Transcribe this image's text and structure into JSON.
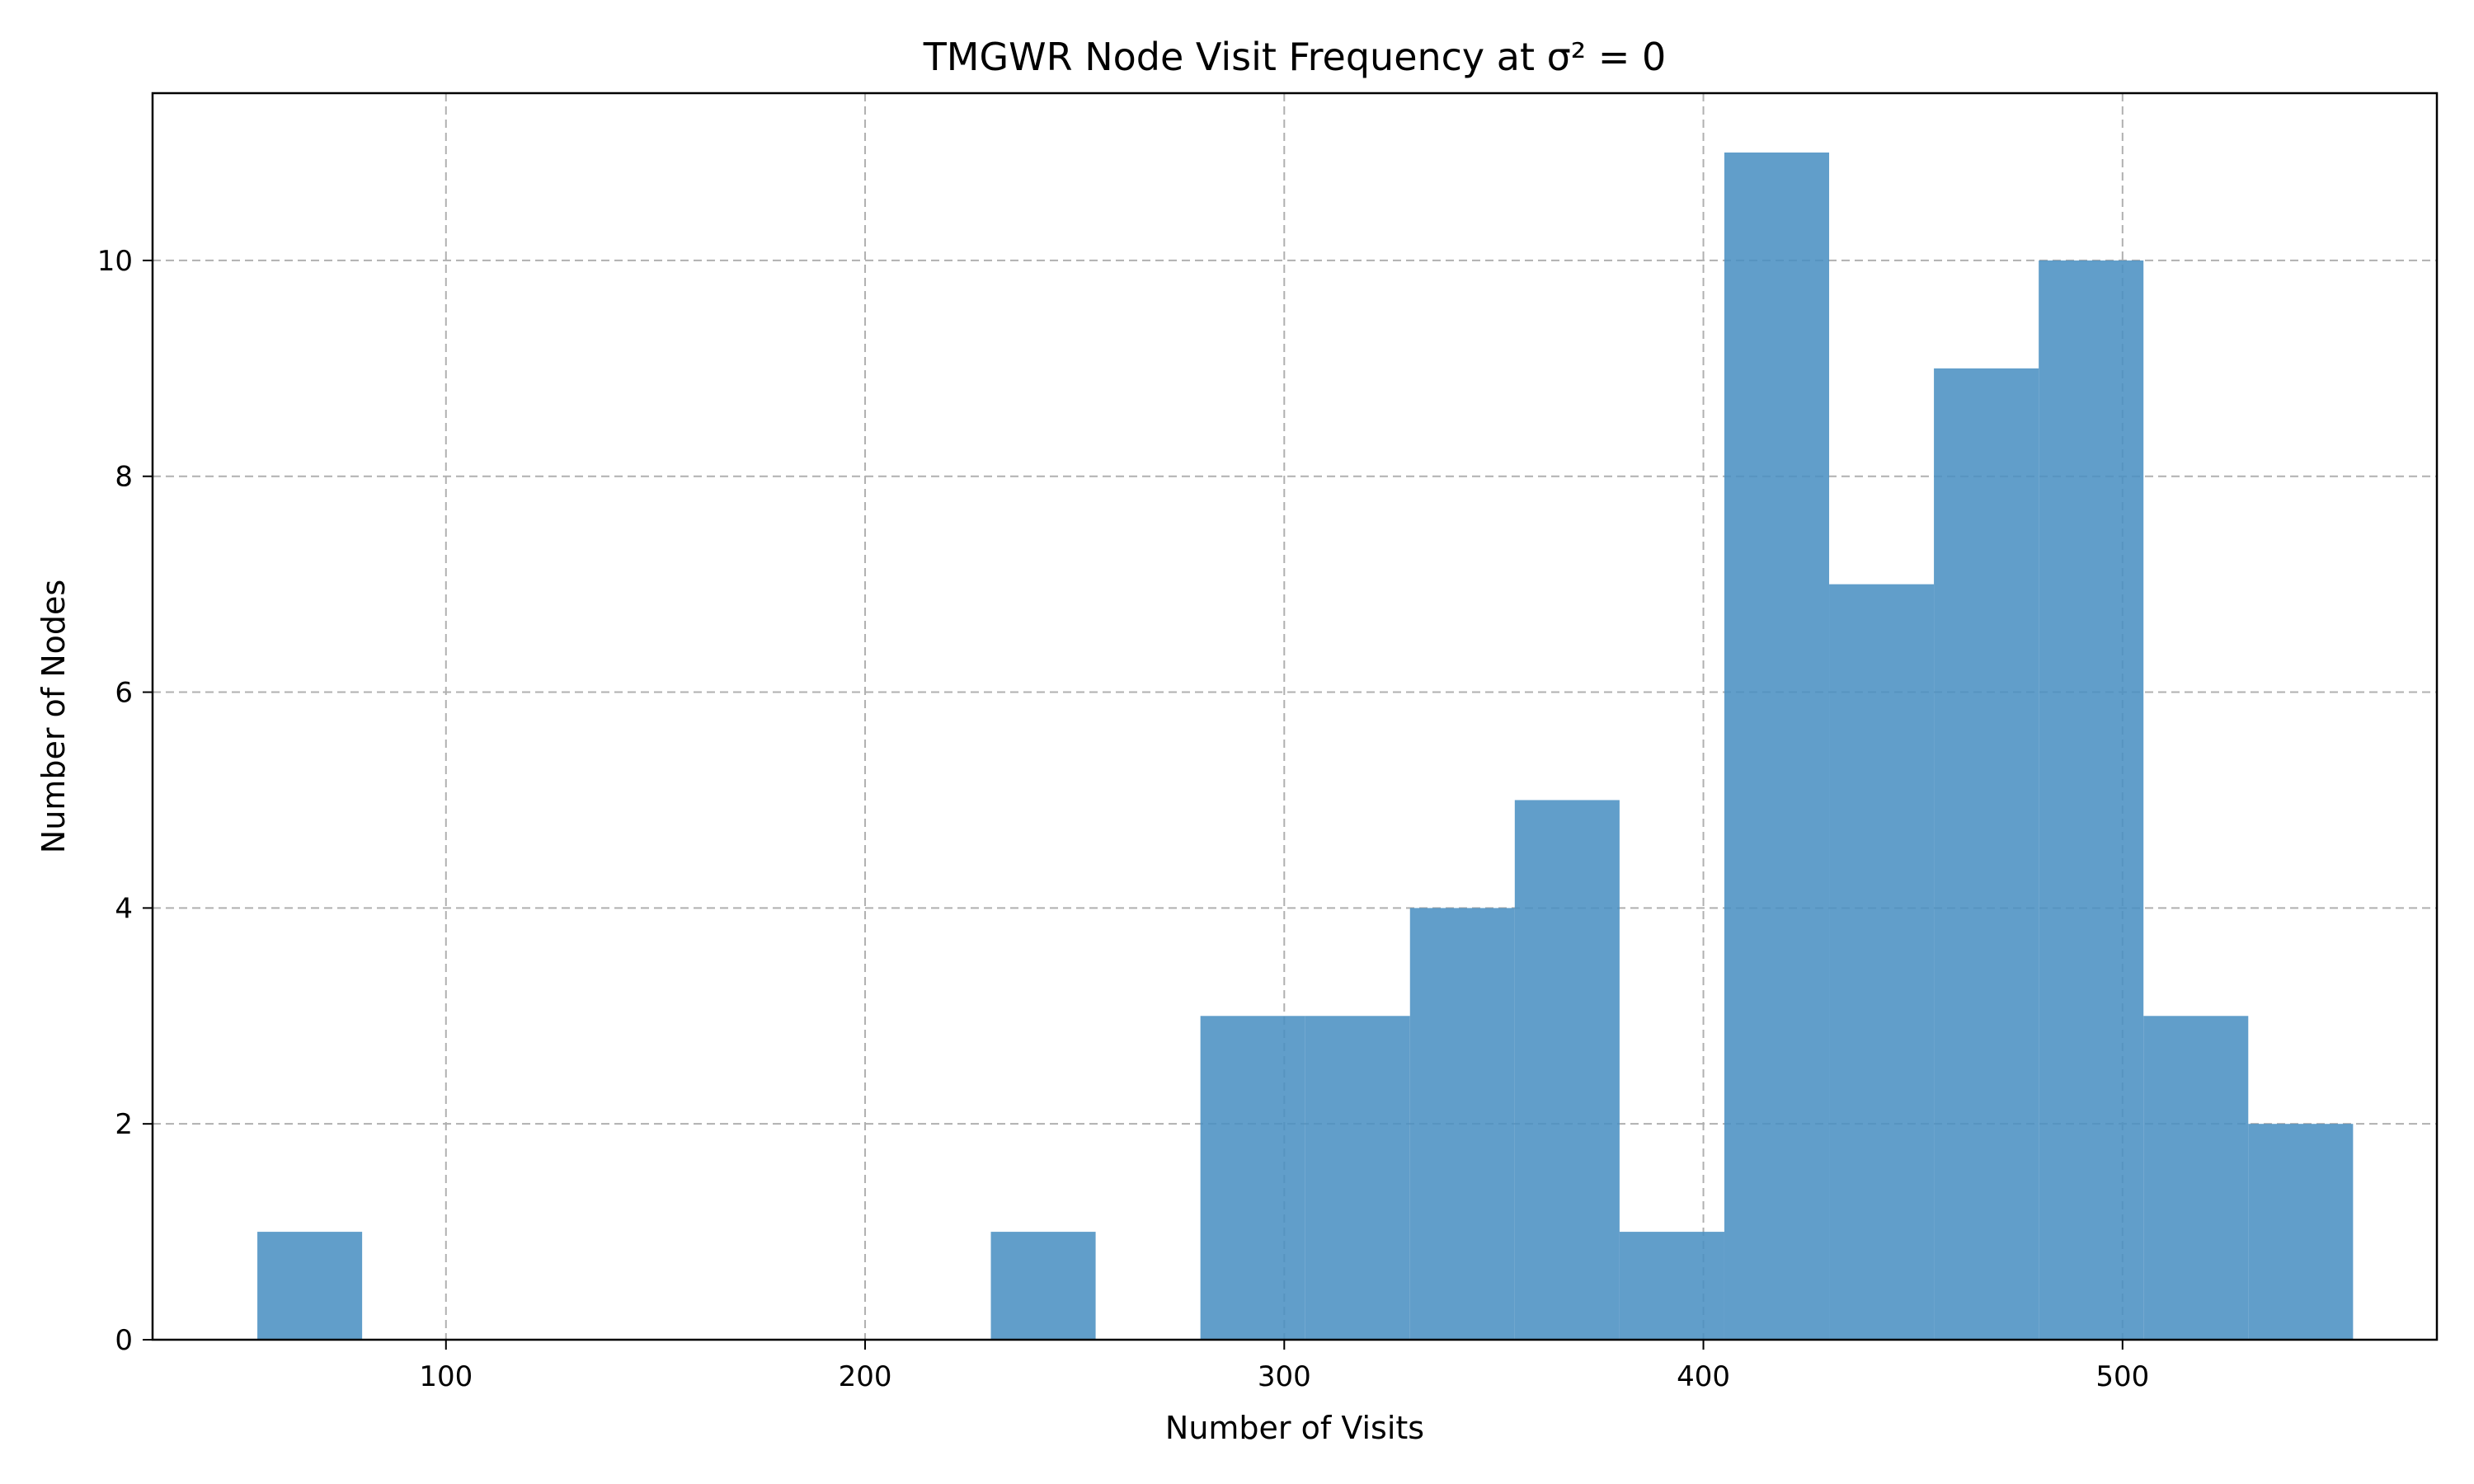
{
  "chart_data": {
    "type": "bar",
    "subtype": "histogram",
    "title": "TMGWR Node Visit Frequency at σ² = 0",
    "xlabel": "Number of Visits",
    "ylabel": "Number of Nodes",
    "xlim": [
      30,
      575
    ],
    "ylim": [
      0,
      11.55
    ],
    "x_ticks": [
      100,
      200,
      300,
      400,
      500
    ],
    "y_ticks": [
      0,
      2,
      4,
      6,
      8,
      10
    ],
    "grid": true,
    "bar_color": "#4a90c2",
    "bar_opacity": 0.87,
    "bins": [
      {
        "start": 55,
        "end": 80,
        "count": 1
      },
      {
        "start": 80,
        "end": 105,
        "count": 0
      },
      {
        "start": 105,
        "end": 130,
        "count": 0
      },
      {
        "start": 130,
        "end": 155,
        "count": 0
      },
      {
        "start": 155,
        "end": 180,
        "count": 0
      },
      {
        "start": 180,
        "end": 205,
        "count": 0
      },
      {
        "start": 205,
        "end": 230,
        "count": 0
      },
      {
        "start": 230,
        "end": 255,
        "count": 1
      },
      {
        "start": 255,
        "end": 280,
        "count": 0
      },
      {
        "start": 280,
        "end": 305,
        "count": 3
      },
      {
        "start": 305,
        "end": 330,
        "count": 3
      },
      {
        "start": 330,
        "end": 355,
        "count": 4
      },
      {
        "start": 355,
        "end": 380,
        "count": 5
      },
      {
        "start": 380,
        "end": 405,
        "count": 1
      },
      {
        "start": 405,
        "end": 430,
        "count": 11
      },
      {
        "start": 430,
        "end": 455,
        "count": 7
      },
      {
        "start": 455,
        "end": 480,
        "count": 9
      },
      {
        "start": 480,
        "end": 505,
        "count": 10
      },
      {
        "start": 505,
        "end": 530,
        "count": 3
      },
      {
        "start": 530,
        "end": 555,
        "count": 2
      }
    ]
  }
}
